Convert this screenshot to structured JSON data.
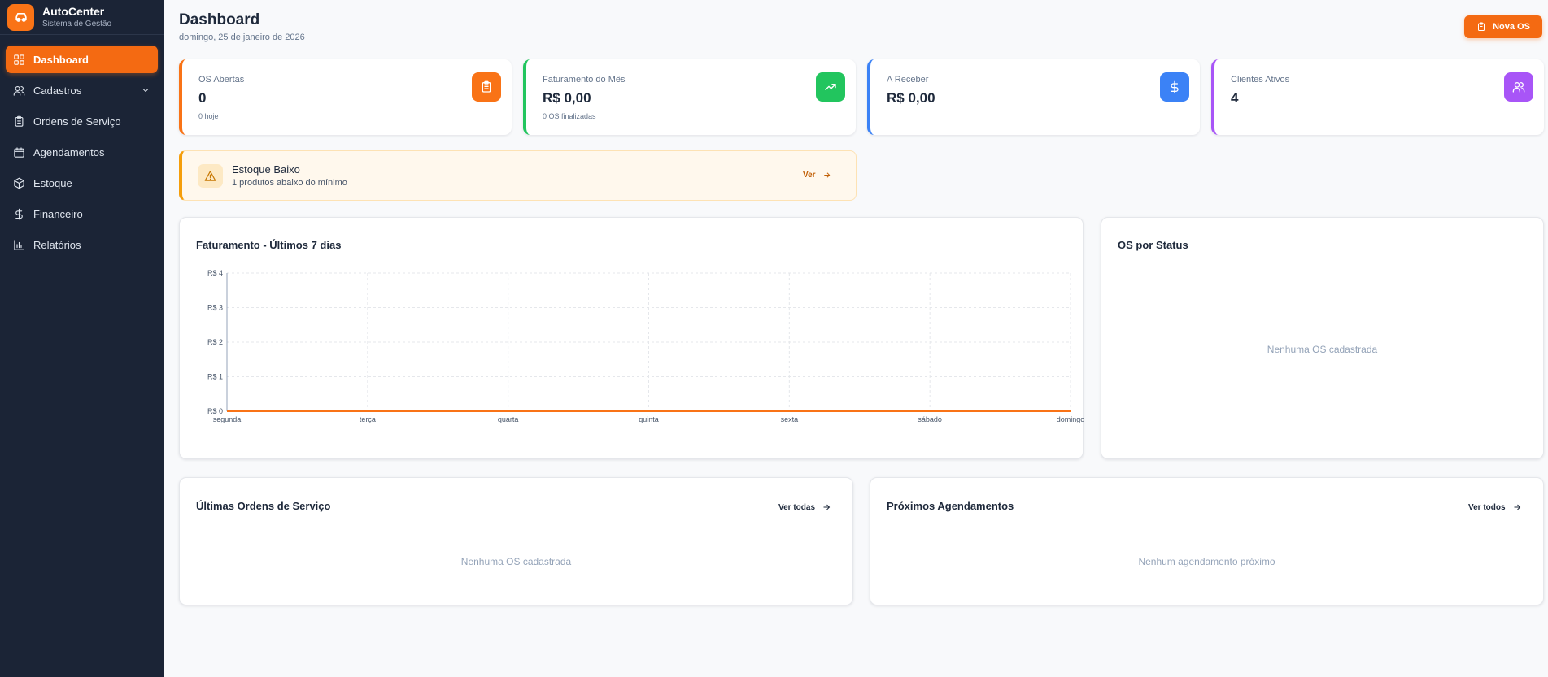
{
  "brand": {
    "name": "AutoCenter",
    "subtitle": "Sistema de Gestão"
  },
  "sidebar": {
    "items": [
      {
        "label": "Dashboard",
        "icon": "grid-icon",
        "active": true
      },
      {
        "label": "Cadastros",
        "icon": "users-icon",
        "expandable": true
      },
      {
        "label": "Ordens de Serviço",
        "icon": "clipboard-icon"
      },
      {
        "label": "Agendamentos",
        "icon": "calendar-icon"
      },
      {
        "label": "Estoque",
        "icon": "package-icon"
      },
      {
        "label": "Financeiro",
        "icon": "dollar-icon"
      },
      {
        "label": "Relatórios",
        "icon": "bar-chart-icon"
      }
    ]
  },
  "header": {
    "title": "Dashboard",
    "date": "domingo, 25 de janeiro de 2026",
    "new_button": "Nova OS"
  },
  "stats": [
    {
      "label": "OS Abertas",
      "value": "0",
      "sub": "0 hoje",
      "color": "#f97316",
      "icon": "clipboard-icon"
    },
    {
      "label": "Faturamento do Mês",
      "value": "R$ 0,00",
      "sub": "0 OS finalizadas",
      "color": "#22c55e",
      "icon": "trending-up-icon"
    },
    {
      "label": "A Receber",
      "value": "R$ 0,00",
      "sub": "",
      "color": "#3b82f6",
      "icon": "dollar-icon"
    },
    {
      "label": "Clientes Ativos",
      "value": "4",
      "sub": "",
      "color": "#a855f7",
      "icon": "users-icon"
    }
  ],
  "alert": {
    "title": "Estoque Baixo",
    "message": "1 produtos abaixo do mínimo",
    "link": "Ver",
    "color": "#f59e0b"
  },
  "revenue_panel": {
    "title": "Faturamento - Últimos 7 dias"
  },
  "status_panel": {
    "title": "OS por Status",
    "empty": "Nenhuma OS cadastrada"
  },
  "orders_panel": {
    "title": "Últimas Ordens de Serviço",
    "link": "Ver todas",
    "empty": "Nenhuma OS cadastrada"
  },
  "appointments_panel": {
    "title": "Próximos Agendamentos",
    "link": "Ver todos",
    "empty": "Nenhum agendamento próximo"
  },
  "chart_data": {
    "type": "line",
    "title": "Faturamento - Últimos 7 dias",
    "categories": [
      "segunda",
      "terça",
      "quarta",
      "quinta",
      "sexta",
      "sábado",
      "domingo"
    ],
    "series": [
      {
        "values": [
          0,
          0,
          0,
          0,
          0,
          0,
          0
        ],
        "color": "#f97316"
      }
    ],
    "ylim": [
      0,
      4
    ],
    "yticks": [
      "R$ 0",
      "R$ 1",
      "R$ 2",
      "R$ 3",
      "R$ 4"
    ],
    "grid": true
  }
}
